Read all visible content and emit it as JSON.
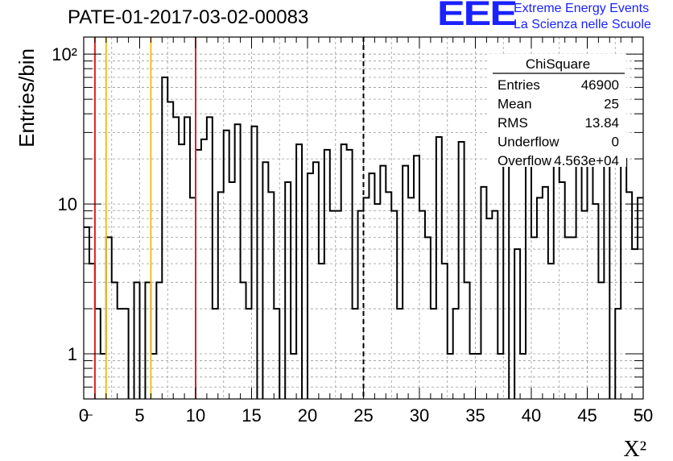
{
  "title": "PATE-01-2017-03-02-00083",
  "logo": {
    "mark": "EEE",
    "line1": "Extreme Energy Events",
    "line2": "La Scienza nelle Scuole",
    "color": "#1a22ff"
  },
  "stats": {
    "name": "ChiSquare",
    "rows": [
      {
        "label": "Entries",
        "value": "46900"
      },
      {
        "label": "Mean",
        "value": "25"
      },
      {
        "label": "RMS",
        "value": "13.84"
      },
      {
        "label": "Underflow",
        "value": "0"
      },
      {
        "label": "Overflow",
        "value": "4.563e+04"
      }
    ]
  },
  "chart_data": {
    "type": "histogram",
    "title": "PATE-01-2017-03-02-00083",
    "xlabel": "X²",
    "ylabel": "Entries/bin",
    "xlim": [
      0,
      50
    ],
    "ylim": [
      0.5,
      130
    ],
    "yscale": "log",
    "grid": true,
    "bin_width": 0.5,
    "x_ticks": [
      "0",
      "5",
      "10",
      "15",
      "20",
      "25",
      "30",
      "35",
      "40",
      "45",
      "50"
    ],
    "y_ticks": [
      {
        "value": 1,
        "label": "1"
      },
      {
        "value": 10,
        "label": "10"
      },
      {
        "value": 100,
        "label": "10²"
      }
    ],
    "counts": [
      7,
      4,
      2,
      1,
      6,
      3,
      2,
      2,
      0,
      3,
      0,
      3,
      1,
      3,
      70,
      48,
      38,
      25,
      38,
      11,
      23,
      27,
      38,
      2,
      12,
      31,
      14,
      34,
      3,
      2,
      33,
      0,
      19,
      12,
      2,
      0,
      14,
      1,
      25,
      0,
      16,
      19,
      4,
      23,
      9,
      9,
      25,
      23,
      2,
      9,
      11,
      16,
      10,
      18,
      12,
      9,
      2,
      18,
      11,
      21,
      9,
      6,
      2,
      28,
      4,
      1,
      2,
      26,
      3,
      1,
      1,
      13,
      8,
      9,
      1,
      21,
      0,
      5,
      1,
      22,
      6,
      11,
      13,
      4,
      20,
      14,
      6,
      6,
      24,
      9,
      18,
      10,
      3,
      23,
      0,
      2,
      20,
      12,
      5,
      11
    ],
    "vertical_lines": [
      {
        "x": 1,
        "color": "#e02020",
        "style": "solid"
      },
      {
        "x": 2,
        "color": "#f0c020",
        "style": "solid"
      },
      {
        "x": 6,
        "color": "#f0c020",
        "style": "solid"
      },
      {
        "x": 10,
        "color": "#e02020",
        "style": "solid"
      },
      {
        "x": 25,
        "color": "#000000",
        "style": "dashed"
      }
    ]
  }
}
